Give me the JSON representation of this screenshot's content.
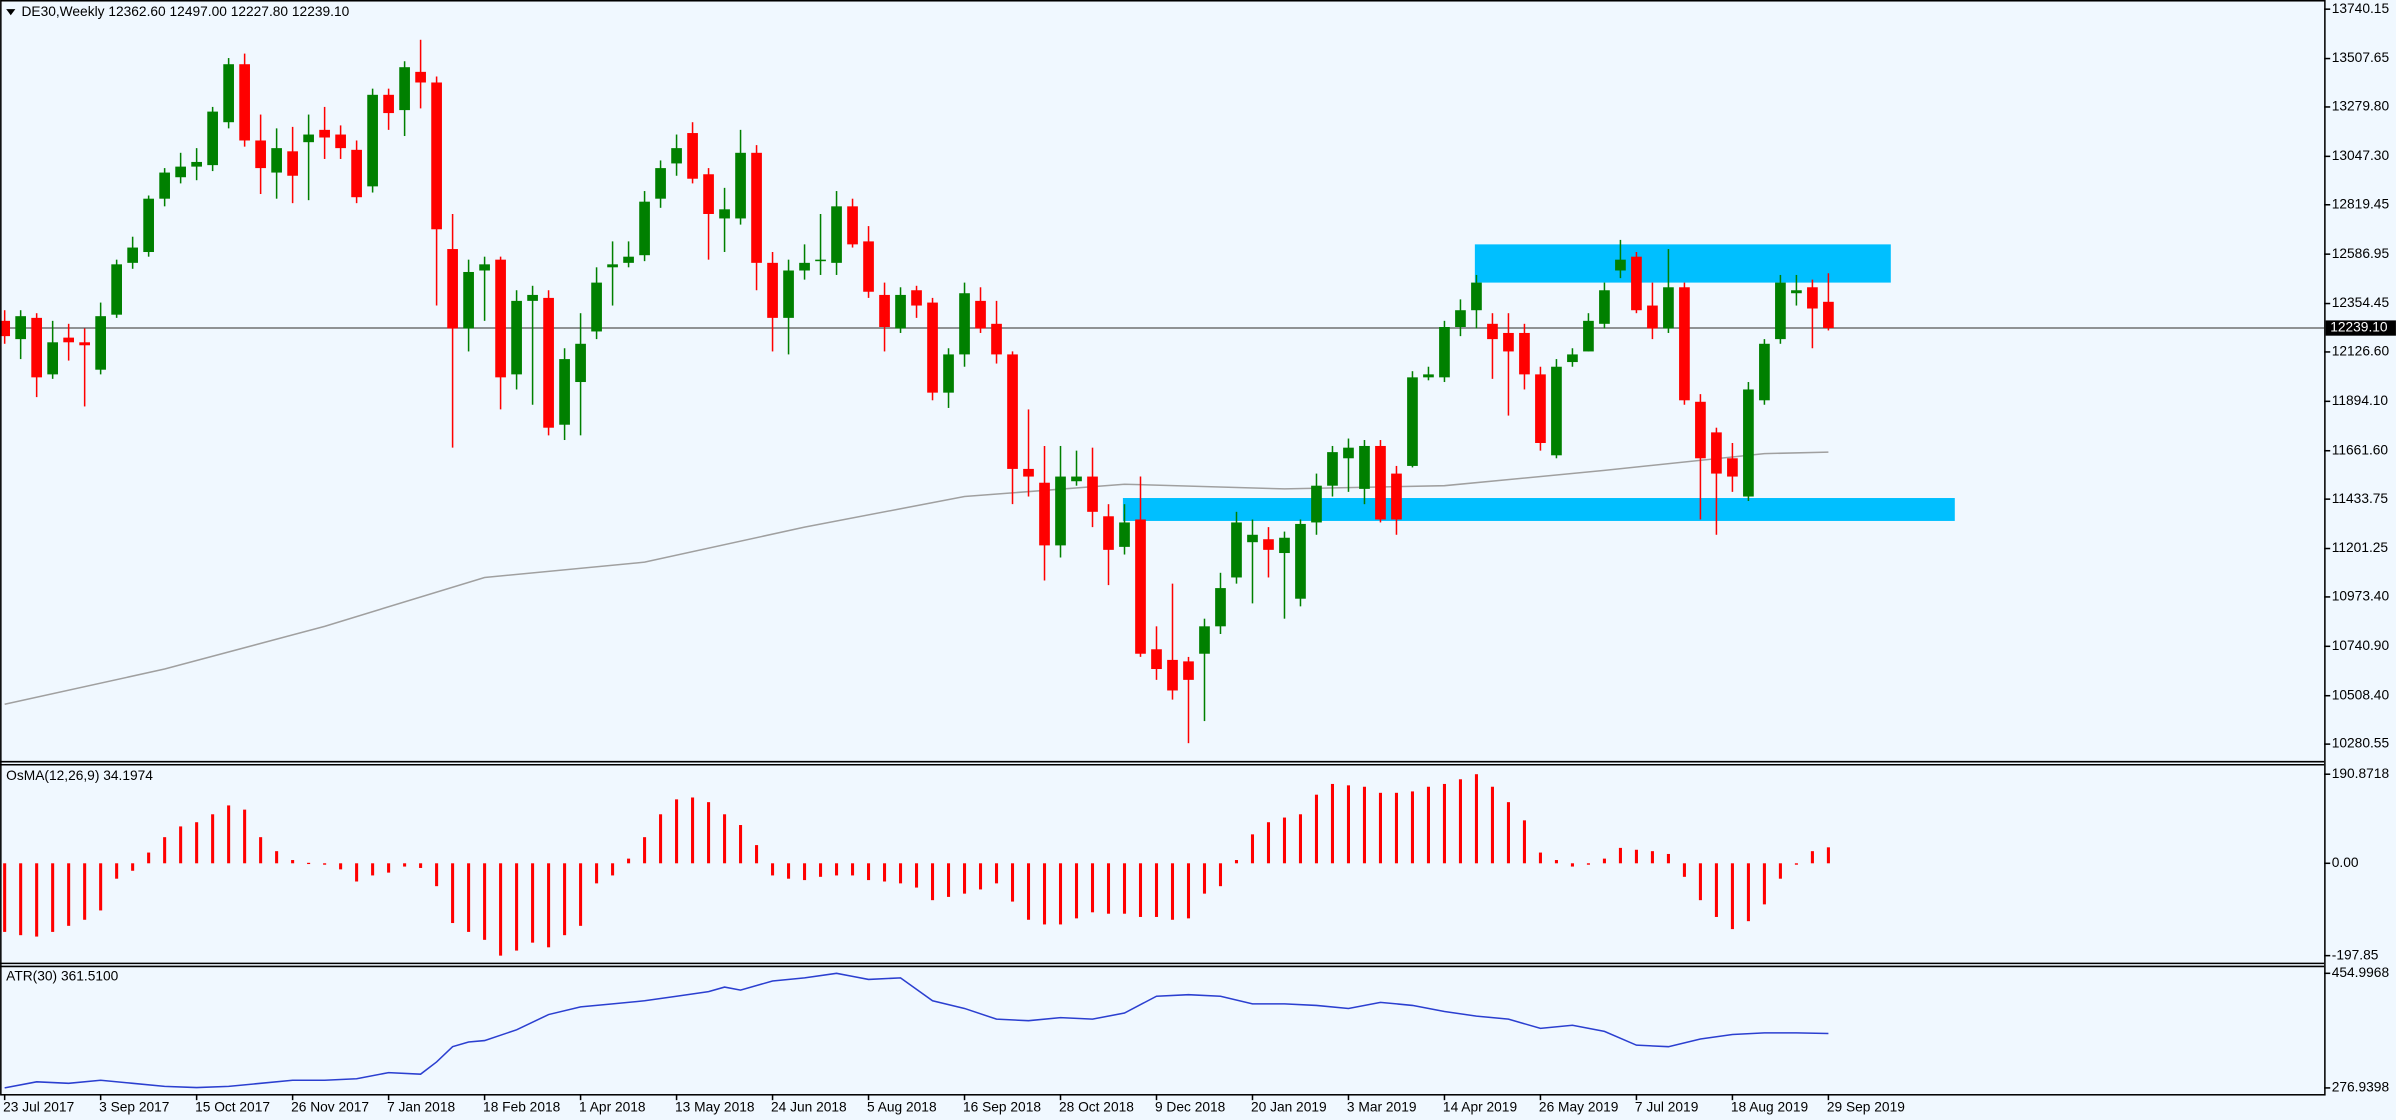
{
  "chart_data": [
    {
      "type": "candlestick",
      "title": "DE30,Weekly",
      "last_labels": [
        "12362.60",
        "12497.00",
        "12227.80",
        "12239.10"
      ],
      "up_color": "#008000",
      "down_color": "#ff0000",
      "categories": [
        "23 Jul 2017",
        null,
        null,
        null,
        null,
        null,
        "3 Sep 2017",
        null,
        null,
        null,
        null,
        null,
        "15 Oct 2017",
        null,
        null,
        null,
        null,
        null,
        "26 Nov 2017",
        null,
        null,
        null,
        null,
        null,
        "7 Jan 2018",
        null,
        null,
        null,
        null,
        null,
        "18 Feb 2018",
        null,
        null,
        null,
        null,
        null,
        "1 Apr 2018",
        null,
        null,
        null,
        null,
        null,
        "13 May 2018",
        null,
        null,
        null,
        null,
        null,
        "24 Jun 2018",
        null,
        null,
        null,
        null,
        null,
        "5 Aug 2018",
        null,
        null,
        null,
        null,
        null,
        "16 Sep 2018",
        null,
        null,
        null,
        null,
        null,
        "28 Oct 2018",
        null,
        null,
        null,
        null,
        null,
        "9 Dec 2018",
        null,
        null,
        null,
        null,
        null,
        "20 Jan 2019",
        null,
        null,
        null,
        null,
        null,
        "3 Mar 2019",
        null,
        null,
        null,
        null,
        null,
        "14 Apr 2019",
        null,
        null,
        null,
        null,
        null,
        "26 May 2019",
        null,
        null,
        null,
        null,
        null,
        "7 Jul 2019",
        null,
        null,
        null,
        null,
        null,
        "18 Aug 2019",
        null,
        null,
        null,
        null,
        null,
        "29 Sep 2019"
      ],
      "ohlc": [
        [
          12273,
          12323,
          12165,
          12201
        ],
        [
          12187,
          12323,
          12093,
          12295
        ],
        [
          12287,
          12309,
          11914,
          12007
        ],
        [
          12021,
          12273,
          12000,
          12172
        ],
        [
          12194,
          12259,
          12086,
          12172
        ],
        [
          12172,
          12237,
          11870,
          12158
        ],
        [
          12043,
          12359,
          12021,
          12295
        ],
        [
          12302,
          12561,
          12287,
          12539
        ],
        [
          12546,
          12669,
          12518,
          12618
        ],
        [
          12597,
          12863,
          12575,
          12848
        ],
        [
          12848,
          12992,
          12812,
          12971
        ],
        [
          12949,
          13064,
          12920,
          12999
        ],
        [
          12999,
          13086,
          12935,
          13021
        ],
        [
          13006,
          13280,
          12978,
          13258
        ],
        [
          13208,
          13510,
          13179,
          13481
        ],
        [
          13481,
          13531,
          13093,
          13122
        ],
        [
          13122,
          13244,
          12870,
          12992
        ],
        [
          12971,
          13179,
          12848,
          13086
        ],
        [
          13071,
          13186,
          12827,
          12956
        ],
        [
          13114,
          13244,
          12841,
          13150
        ],
        [
          13172,
          13280,
          13035,
          13136
        ],
        [
          13150,
          13193,
          13035,
          13086
        ],
        [
          13078,
          13122,
          12827,
          12855
        ],
        [
          12906,
          13366,
          12877,
          13337
        ],
        [
          13337,
          13366,
          13172,
          13251
        ],
        [
          13265,
          13495,
          13143,
          13467
        ],
        [
          13445,
          13596,
          13273,
          13395
        ],
        [
          13395,
          13423,
          12345,
          12704
        ],
        [
          12611,
          12776,
          11676,
          12237
        ],
        [
          12237,
          12561,
          12129,
          12503
        ],
        [
          12510,
          12575,
          12273,
          12539
        ],
        [
          12561,
          12575,
          11856,
          12007
        ],
        [
          12021,
          12417,
          11950,
          12367
        ],
        [
          12367,
          12438,
          11878,
          12395
        ],
        [
          12381,
          12417,
          11734,
          11770
        ],
        [
          11784,
          12144,
          11712,
          12093
        ],
        [
          11985,
          12309,
          11734,
          12165
        ],
        [
          12223,
          12525,
          12187,
          12453
        ],
        [
          12525,
          12647,
          12345,
          12539
        ],
        [
          12546,
          12647,
          12525,
          12575
        ],
        [
          12582,
          12884,
          12554,
          12834
        ],
        [
          12848,
          13028,
          12805,
          12992
        ],
        [
          13014,
          13150,
          12956,
          13086
        ],
        [
          13157,
          13208,
          12920,
          12942
        ],
        [
          12963,
          12992,
          12561,
          12776
        ],
        [
          12755,
          12899,
          12597,
          12798
        ],
        [
          12755,
          13172,
          12726,
          13064
        ],
        [
          13064,
          13100,
          12417,
          12546
        ],
        [
          12546,
          12597,
          12129,
          12287
        ],
        [
          12287,
          12561,
          12115,
          12510
        ],
        [
          12510,
          12633,
          12467,
          12546
        ],
        [
          12554,
          12776,
          12489,
          12561
        ],
        [
          12546,
          12884,
          12489,
          12812
        ],
        [
          12812,
          12848,
          12618,
          12633
        ],
        [
          12647,
          12719,
          12381,
          12410
        ],
        [
          12395,
          12453,
          12129,
          12244
        ],
        [
          12237,
          12431,
          12216,
          12395
        ],
        [
          12417,
          12438,
          12287,
          12345
        ],
        [
          12359,
          12381,
          11899,
          11935
        ],
        [
          11935,
          12144,
          11863,
          12115
        ],
        [
          12115,
          12453,
          12057,
          12403
        ],
        [
          12367,
          12431,
          12216,
          12237
        ],
        [
          12259,
          12367,
          12072,
          12115
        ],
        [
          12115,
          12129,
          11410,
          11576
        ],
        [
          11576,
          11856,
          11446,
          11540
        ],
        [
          11511,
          11684,
          11051,
          11216
        ],
        [
          11216,
          11684,
          11159,
          11540
        ],
        [
          11518,
          11662,
          11497,
          11540
        ],
        [
          11540,
          11676,
          11302,
          11374
        ],
        [
          11353,
          11410,
          11029,
          11195
        ],
        [
          11209,
          11410,
          11173,
          11324
        ],
        [
          11338,
          11540,
          10691,
          10706
        ],
        [
          10727,
          10835,
          10583,
          10634
        ],
        [
          10677,
          11036,
          10490,
          10533
        ],
        [
          10670,
          10691,
          10285,
          10583
        ],
        [
          10706,
          10871,
          10389,
          10835
        ],
        [
          10835,
          11087,
          10799,
          11015
        ],
        [
          11065,
          11374,
          11036,
          11324
        ],
        [
          11231,
          11338,
          10943,
          11266
        ],
        [
          11245,
          11302,
          11065,
          11195
        ],
        [
          11180,
          11281,
          10871,
          11252
        ],
        [
          10965,
          11338,
          10929,
          11317
        ],
        [
          11324,
          11554,
          11266,
          11497
        ],
        [
          11497,
          11684,
          11446,
          11655
        ],
        [
          11626,
          11719,
          11468,
          11676
        ],
        [
          11482,
          11712,
          11410,
          11684
        ],
        [
          11684,
          11712,
          11324,
          11338
        ],
        [
          11554,
          11590,
          11266,
          11338
        ],
        [
          11590,
          12036,
          11583,
          12007
        ],
        [
          12007,
          12057,
          11993,
          12021
        ],
        [
          12007,
          12273,
          11985,
          12244
        ],
        [
          12244,
          12374,
          12201,
          12323
        ],
        [
          12323,
          12489,
          12237,
          12453
        ],
        [
          12259,
          12309,
          12000,
          12187
        ],
        [
          12216,
          12309,
          11827,
          12129
        ],
        [
          12216,
          12259,
          11950,
          12021
        ],
        [
          12021,
          12057,
          11662,
          11698
        ],
        [
          11640,
          12093,
          11626,
          12057
        ],
        [
          12079,
          12144,
          12057,
          12115
        ],
        [
          12129,
          12309,
          12129,
          12273
        ],
        [
          12259,
          12453,
          12237,
          12417
        ],
        [
          12510,
          12654,
          12474,
          12561
        ],
        [
          12575,
          12597,
          12309,
          12323
        ],
        [
          12345,
          12453,
          12187,
          12237
        ],
        [
          12237,
          12611,
          12216,
          12431
        ],
        [
          12431,
          12453,
          11878,
          11899
        ],
        [
          11892,
          11928,
          11338,
          11626
        ],
        [
          11748,
          11770,
          11266,
          11554
        ],
        [
          11626,
          11698,
          11468,
          11540
        ],
        [
          11446,
          11985,
          11425,
          11950
        ],
        [
          11899,
          12187,
          11878,
          12165
        ],
        [
          12187,
          12489,
          12165,
          12453
        ],
        [
          12403,
          12489,
          12345,
          12417
        ],
        [
          12431,
          12467,
          12144,
          12331
        ],
        [
          12362.6,
          12497,
          12227.8,
          12239.1
        ]
      ],
      "ma": {
        "color": "#a0a0a0",
        "index": [
          0,
          10,
          20,
          30,
          40,
          50,
          60,
          70,
          80,
          90,
          100,
          110,
          114
        ],
        "values": [
          10468,
          10634,
          10835,
          11065,
          11137,
          11302,
          11446,
          11504,
          11482,
          11497,
          11569,
          11648,
          11655
        ]
      },
      "zones": [
        {
          "color": "#00bfff",
          "from_index": 91.9,
          "to_index": 117.9,
          "low": 12453,
          "high": 12633
        },
        {
          "color": "#00bfff",
          "from_index": 69.9,
          "to_index": 121.9,
          "low": 11331,
          "high": 11439
        }
      ],
      "price_line": {
        "value": 12239.1,
        "label": "12239.10"
      },
      "ylim": [
        10208.6,
        13776.1
      ],
      "yticks": [
        {
          "value": 13740.15,
          "label": "13740.15"
        },
        {
          "value": 13507.65,
          "label": "13507.65"
        },
        {
          "value": 13279.8,
          "label": "13279.80"
        },
        {
          "value": 13047.3,
          "label": "13047.30"
        },
        {
          "value": 12819.45,
          "label": "12819.45"
        },
        {
          "value": 12586.95,
          "label": "12586.95"
        },
        {
          "value": 12354.45,
          "label": "12354.45"
        },
        {
          "value": 12126.6,
          "label": "12126.60"
        },
        {
          "value": 11894.1,
          "label": "11894.10"
        },
        {
          "value": 11661.6,
          "label": "11661.60"
        },
        {
          "value": 11433.75,
          "label": "11433.75"
        },
        {
          "value": 11201.25,
          "label": "11201.25"
        },
        {
          "value": 10973.4,
          "label": "10973.40"
        },
        {
          "value": 10740.9,
          "label": "10740.90"
        },
        {
          "value": 10508.4,
          "label": "10508.40"
        },
        {
          "value": 10280.55,
          "label": "10280.55"
        }
      ],
      "grid": false
    },
    {
      "type": "bar",
      "title": "OsMA(12,26,9)",
      "color": "#ff0000",
      "values": [
        -147,
        -154,
        -157,
        -147,
        -134,
        -121,
        -101,
        -33,
        -16,
        23,
        56,
        79,
        88,
        105,
        124,
        115,
        56,
        26,
        7,
        1,
        -3,
        -13,
        -39,
        -26,
        -20,
        -7,
        -10,
        -49,
        -128,
        -147,
        -164,
        -197.85,
        -187,
        -170,
        -180,
        -154,
        -134,
        -43,
        -26,
        10,
        56,
        105,
        137,
        141,
        131,
        105,
        82,
        39,
        -26,
        -33,
        -36,
        -29,
        -26,
        -26,
        -36,
        -39,
        -43,
        -52,
        -79,
        -72,
        -65,
        -56,
        -43,
        -82,
        -121,
        -131,
        -131,
        -118,
        -105,
        -108,
        -108,
        -115,
        -115,
        -121,
        -118,
        -65,
        -49,
        7,
        62,
        88,
        98,
        105,
        147,
        170,
        167,
        164,
        151,
        151,
        154,
        164,
        170,
        180,
        190.8718,
        164,
        131,
        92,
        23,
        7,
        -7,
        -3,
        10,
        33,
        29,
        26,
        20,
        -29,
        -79,
        -115,
        -141,
        -124,
        -88,
        -33,
        -3,
        26,
        34.1974
      ],
      "ylim": [
        -212.8,
        209.5
      ],
      "yticks": [
        190.8718,
        {
          "value": 0,
          "label": "0.00"
        },
        -197.85
      ],
      "grid": false
    },
    {
      "type": "line",
      "title": "ATR(30)",
      "value_label": "361.5100",
      "color": "#2b3fd0",
      "index": [
        0,
        2,
        4,
        6,
        8,
        10,
        12,
        14,
        16,
        18,
        20,
        22,
        24,
        26,
        27,
        28,
        29,
        30,
        32,
        34,
        36,
        38,
        40,
        42,
        44,
        45,
        46,
        48,
        50,
        52,
        53,
        54,
        56,
        58,
        60,
        62,
        64,
        66,
        68,
        70,
        72,
        74,
        76,
        78,
        80,
        82,
        84,
        86,
        88,
        90,
        92,
        94,
        96,
        98,
        100,
        102,
        104,
        106,
        108,
        110,
        112,
        114
      ],
      "values": [
        276.9398,
        286.4,
        284.1,
        288.8,
        284.1,
        279.3,
        277.5,
        279.3,
        284.1,
        288.8,
        288.8,
        291.2,
        300.7,
        298.3,
        317.3,
        341.0,
        348.2,
        350.5,
        367.2,
        390.9,
        402.8,
        407.5,
        412.3,
        419.4,
        426.5,
        433.6,
        428.9,
        443.1,
        447.9,
        454.9968,
        450.2,
        445.5,
        447.9,
        412.3,
        400.4,
        383.8,
        381.4,
        386.2,
        383.8,
        393.3,
        419.4,
        421.8,
        419.4,
        407.5,
        407.5,
        405.1,
        400.4,
        409.9,
        405.1,
        395.7,
        388.5,
        383.8,
        369.5,
        374.3,
        364.8,
        343.4,
        341.0,
        352.9,
        360.0,
        362.4,
        362.4,
        361.51
      ],
      "ylim": [
        267.45,
        464.49
      ],
      "yticks": [
        454.9968,
        276.9398
      ],
      "grid": false
    }
  ]
}
